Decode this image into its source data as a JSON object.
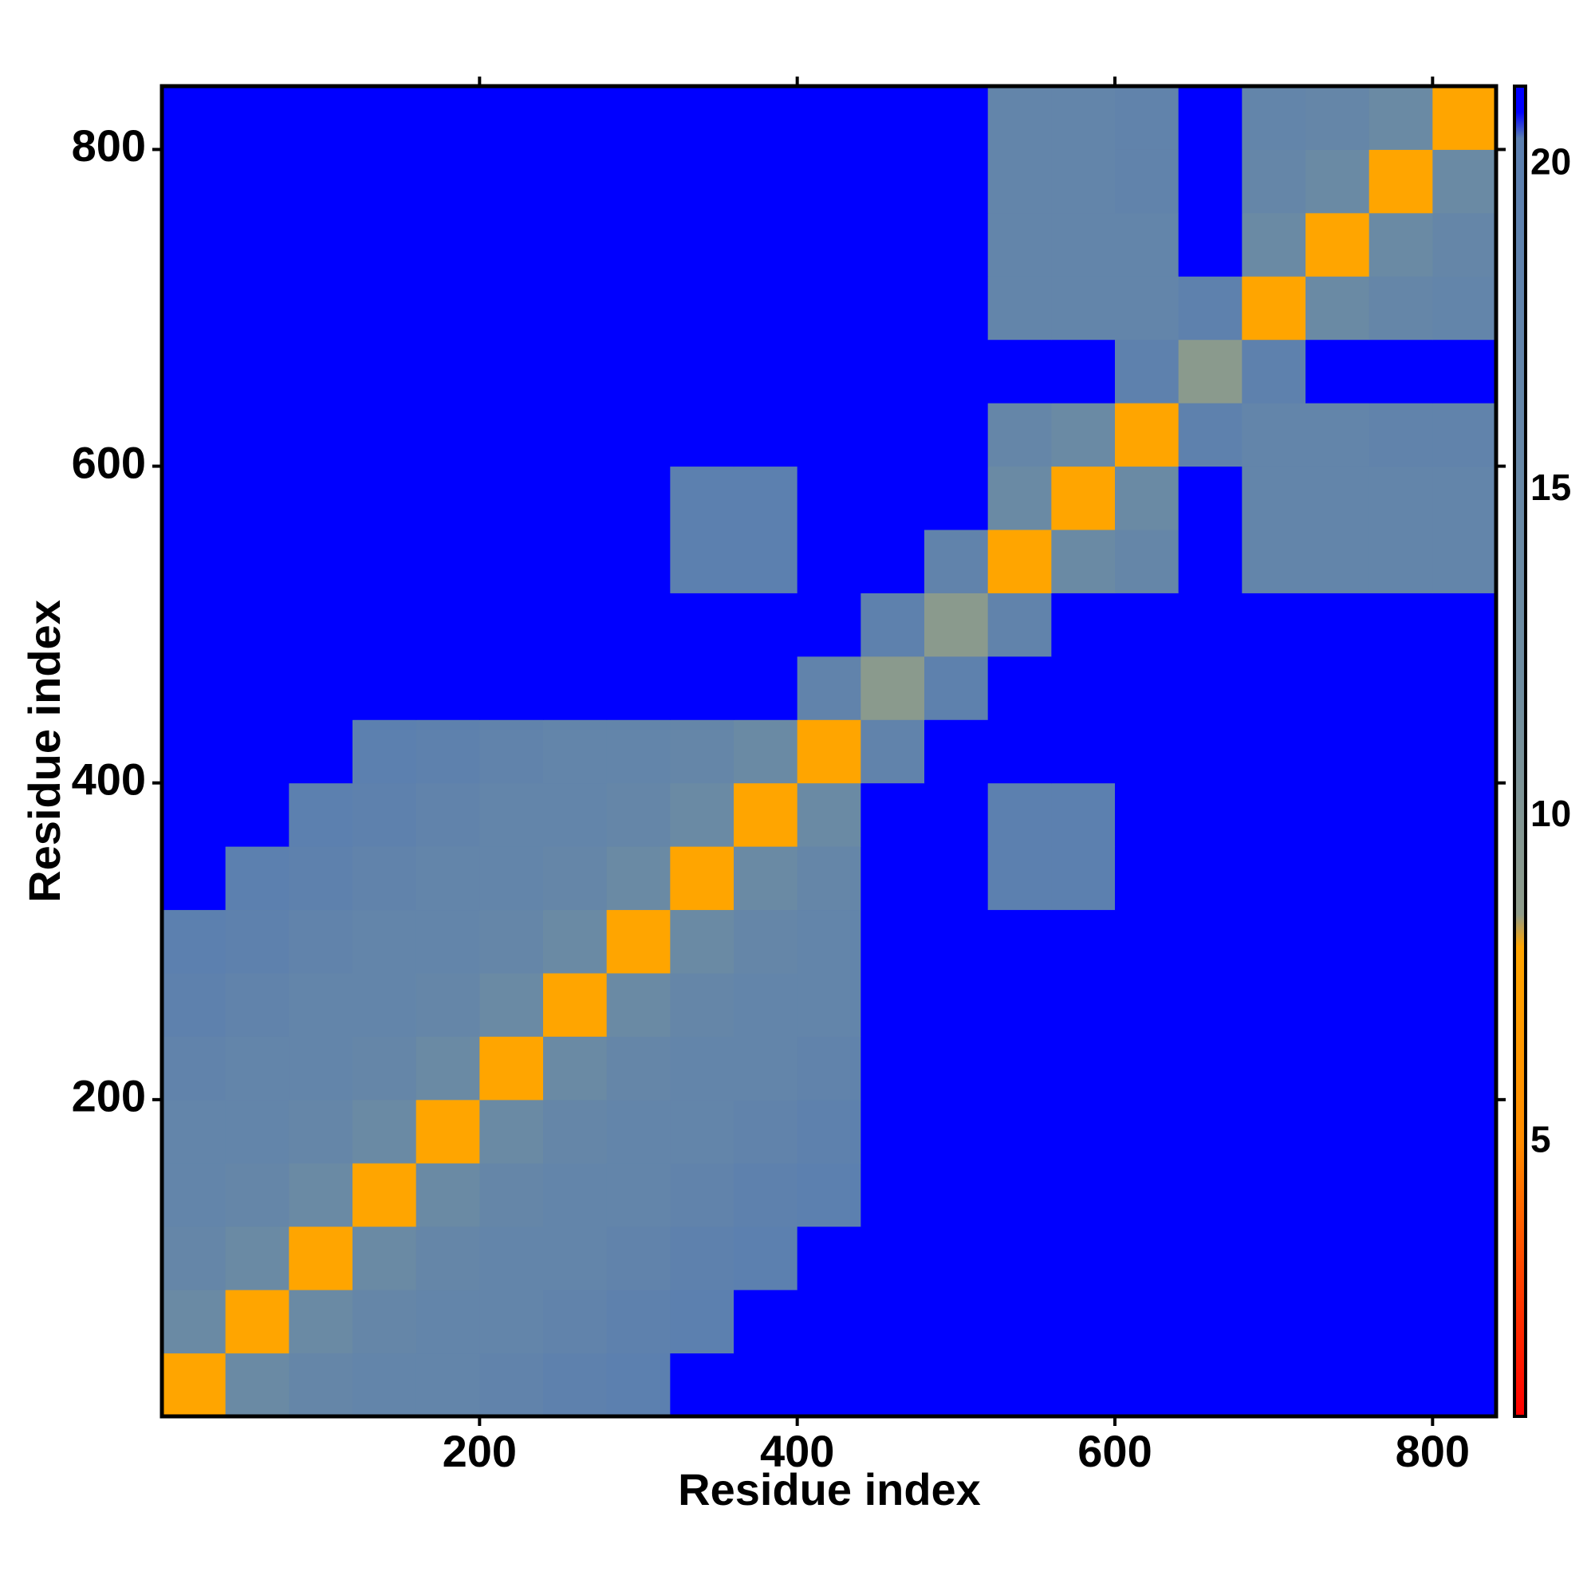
{
  "chart_data": {
    "type": "heatmap",
    "xlabel": "Residue index",
    "ylabel": "Residue index",
    "xlim": [
      0,
      840
    ],
    "ylim": [
      0,
      840
    ],
    "xticks": [
      200,
      400,
      600,
      800
    ],
    "yticks": [
      200,
      400,
      600,
      800
    ],
    "mirror_ticks": true,
    "x_bins": [
      0,
      40,
      80,
      120,
      160,
      200,
      240,
      280,
      320,
      360,
      400,
      440,
      480,
      520,
      560,
      600,
      640,
      680,
      720,
      760,
      800,
      840
    ],
    "y_bins": [
      0,
      40,
      80,
      120,
      160,
      200,
      240,
      280,
      320,
      360,
      400,
      440,
      480,
      520,
      560,
      600,
      640,
      680,
      720,
      760,
      800,
      840
    ],
    "z": [
      [
        8,
        14,
        16,
        17,
        17,
        18,
        19,
        20,
        21,
        21,
        21,
        21,
        21,
        21,
        21,
        21,
        21,
        21,
        21,
        21,
        21
      ],
      [
        14,
        8,
        14,
        16,
        17,
        17,
        18,
        19,
        20,
        21,
        21,
        21,
        21,
        21,
        21,
        21,
        21,
        21,
        21,
        21,
        21
      ],
      [
        16,
        14,
        8,
        14,
        16,
        17,
        17,
        18,
        19,
        20,
        21,
        21,
        21,
        21,
        21,
        21,
        21,
        21,
        21,
        21,
        21
      ],
      [
        17,
        16,
        14,
        8,
        14,
        16,
        17,
        17,
        18,
        19,
        20,
        21,
        21,
        21,
        21,
        21,
        21,
        21,
        21,
        21,
        21
      ],
      [
        17,
        17,
        16,
        14,
        8,
        14,
        16,
        17,
        17,
        18,
        19,
        21,
        21,
        21,
        21,
        21,
        21,
        21,
        21,
        21,
        21
      ],
      [
        18,
        17,
        17,
        16,
        14,
        8,
        14,
        16,
        17,
        17,
        18,
        21,
        21,
        21,
        21,
        21,
        21,
        21,
        21,
        21,
        21
      ],
      [
        19,
        18,
        17,
        17,
        16,
        14,
        8,
        14,
        16,
        17,
        17,
        21,
        21,
        21,
        21,
        21,
        21,
        21,
        21,
        21,
        21
      ],
      [
        20,
        19,
        18,
        17,
        17,
        16,
        14,
        8,
        14,
        16,
        17,
        21,
        21,
        21,
        21,
        21,
        21,
        21,
        21,
        21,
        21
      ],
      [
        21,
        20,
        19,
        18,
        17,
        17,
        16,
        14,
        8,
        14,
        16,
        21,
        21,
        20,
        20,
        21,
        21,
        21,
        21,
        21,
        21
      ],
      [
        21,
        21,
        20,
        19,
        18,
        17,
        17,
        16,
        14,
        8,
        14,
        21,
        21,
        20,
        20,
        21,
        21,
        21,
        21,
        21,
        21
      ],
      [
        21,
        21,
        21,
        20,
        19,
        18,
        17,
        17,
        16,
        14,
        8,
        18,
        21,
        21,
        21,
        21,
        21,
        21,
        21,
        21,
        21
      ],
      [
        21,
        21,
        21,
        21,
        21,
        21,
        21,
        21,
        21,
        21,
        18,
        9,
        19,
        21,
        21,
        21,
        21,
        21,
        21,
        21,
        21
      ],
      [
        21,
        21,
        21,
        21,
        21,
        21,
        21,
        21,
        21,
        21,
        21,
        19,
        9,
        18,
        21,
        21,
        21,
        21,
        21,
        21,
        21
      ],
      [
        21,
        21,
        21,
        21,
        21,
        21,
        21,
        21,
        20,
        20,
        21,
        21,
        18,
        8,
        14,
        16,
        21,
        17,
        17,
        17,
        17
      ],
      [
        21,
        21,
        21,
        21,
        21,
        21,
        21,
        21,
        20,
        20,
        21,
        21,
        21,
        14,
        8,
        14,
        21,
        17,
        17,
        17,
        17
      ],
      [
        21,
        21,
        21,
        21,
        21,
        21,
        21,
        21,
        21,
        21,
        21,
        21,
        21,
        16,
        14,
        8,
        19,
        17,
        17,
        18,
        18
      ],
      [
        21,
        21,
        21,
        21,
        21,
        21,
        21,
        21,
        21,
        21,
        21,
        21,
        21,
        21,
        21,
        19,
        9,
        19,
        21,
        21,
        21
      ],
      [
        21,
        21,
        21,
        21,
        21,
        21,
        21,
        21,
        21,
        21,
        21,
        21,
        21,
        17,
        17,
        17,
        19,
        8,
        14,
        16,
        17
      ],
      [
        21,
        21,
        21,
        21,
        21,
        21,
        21,
        21,
        21,
        21,
        21,
        21,
        21,
        17,
        17,
        17,
        21,
        14,
        8,
        14,
        16
      ],
      [
        21,
        21,
        21,
        21,
        21,
        21,
        21,
        21,
        21,
        21,
        21,
        21,
        21,
        17,
        17,
        18,
        21,
        16,
        14,
        8,
        14
      ],
      [
        21,
        21,
        21,
        21,
        21,
        21,
        21,
        21,
        21,
        21,
        21,
        21,
        21,
        17,
        17,
        18,
        21,
        17,
        16,
        14,
        8
      ]
    ],
    "clim": [
      0.8,
      21.2
    ],
    "cticks": [
      5,
      10,
      15,
      20
    ],
    "colorscale": [
      [
        0.8,
        "#ff0000"
      ],
      [
        3,
        "#ff4500"
      ],
      [
        5,
        "#ff8c00"
      ],
      [
        8,
        "#ffa500"
      ],
      [
        8.5,
        "#8f9c8a"
      ],
      [
        12,
        "#6f8da0"
      ],
      [
        20.4,
        "#5b7fb0"
      ],
      [
        20.8,
        "#0000ff"
      ],
      [
        21.2,
        "#0000ff"
      ]
    ]
  }
}
